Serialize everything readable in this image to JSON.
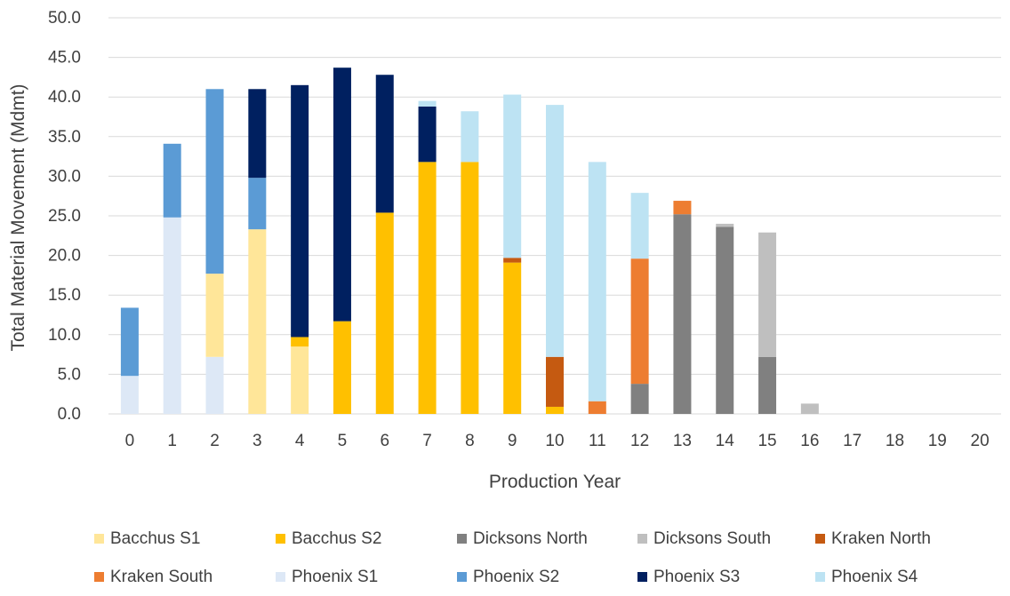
{
  "chart_data": {
    "type": "bar",
    "stacked": true,
    "title": "",
    "xlabel": "Production Year",
    "ylabel": "Total Material Movement (Mdmt)",
    "categories": [
      "0",
      "1",
      "2",
      "3",
      "4",
      "5",
      "6",
      "7",
      "8",
      "9",
      "10",
      "11",
      "12",
      "13",
      "14",
      "15",
      "16",
      "17",
      "18",
      "19",
      "20"
    ],
    "ylim": [
      0,
      50
    ],
    "yticks": [
      "0.0",
      "5.0",
      "10.0",
      "15.0",
      "20.0",
      "25.0",
      "30.0",
      "35.0",
      "40.0",
      "45.0",
      "50.0"
    ],
    "grid": "horizontal",
    "legend_position": "bottom",
    "series": [
      {
        "name": "Phoenix S1",
        "color": "#dde8f6",
        "values": [
          4.8,
          24.8,
          7.2,
          0,
          0,
          0,
          0,
          0,
          0,
          0,
          0,
          0,
          0,
          0,
          0,
          0,
          0,
          0,
          0,
          0,
          0
        ]
      },
      {
        "name": "Bacchus S1",
        "color": "#ffe699",
        "values": [
          0,
          0,
          10.5,
          23.3,
          8.5,
          0,
          0,
          0,
          0,
          0,
          0,
          0,
          0,
          0,
          0,
          0,
          0,
          0,
          0,
          0,
          0
        ]
      },
      {
        "name": "Bacchus S2",
        "color": "#ffc000",
        "values": [
          0,
          0,
          0,
          0,
          1.2,
          11.7,
          25.4,
          31.8,
          31.8,
          19.1,
          0.9,
          0,
          0,
          0,
          0,
          0,
          0,
          0,
          0,
          0,
          0
        ]
      },
      {
        "name": "Kraken North",
        "color": "#c55a11",
        "values": [
          0,
          0,
          0,
          0,
          0,
          0,
          0,
          0,
          0,
          0.6,
          6.3,
          0,
          0,
          0,
          0,
          0,
          0,
          0,
          0,
          0,
          0
        ]
      },
      {
        "name": "Dicksons North",
        "color": "#808080",
        "values": [
          0,
          0,
          0,
          0,
          0,
          0,
          0,
          0,
          0,
          0,
          0,
          0,
          3.8,
          25.2,
          23.6,
          7.2,
          0,
          0,
          0,
          0,
          0
        ]
      },
      {
        "name": "Kraken South",
        "color": "#ed7d31",
        "values": [
          0,
          0,
          0,
          0,
          0,
          0,
          0,
          0,
          0,
          0,
          0,
          1.6,
          15.8,
          1.7,
          0,
          0,
          0,
          0,
          0,
          0,
          0
        ]
      },
      {
        "name": "Dicksons South",
        "color": "#bfbfbf",
        "values": [
          0,
          0,
          0,
          0,
          0,
          0,
          0,
          0,
          0,
          0,
          0,
          0,
          0,
          0,
          0.4,
          15.7,
          1.3,
          0,
          0,
          0,
          0
        ]
      },
      {
        "name": "Phoenix S2",
        "color": "#5b9bd5",
        "values": [
          8.6,
          9.3,
          23.3,
          6.5,
          0,
          0,
          0,
          0,
          0,
          0,
          0,
          0,
          0,
          0,
          0,
          0,
          0,
          0,
          0,
          0,
          0
        ]
      },
      {
        "name": "Phoenix S3",
        "color": "#002060",
        "values": [
          0,
          0,
          0,
          11.2,
          31.8,
          32.0,
          17.4,
          7.0,
          0,
          0,
          0,
          0,
          0,
          0,
          0,
          0,
          0,
          0,
          0,
          0,
          0
        ]
      },
      {
        "name": "Phoenix S4",
        "color": "#bde3f3",
        "values": [
          0,
          0,
          0,
          0,
          0,
          0,
          0,
          0.7,
          6.4,
          20.6,
          31.8,
          30.2,
          8.3,
          0,
          0,
          0,
          0,
          0,
          0,
          0,
          0
        ]
      }
    ],
    "legend": [
      "Bacchus S1",
      "Bacchus S2",
      "Dicksons North",
      "Dicksons South",
      "Kraken North",
      "Kraken South",
      "Phoenix S1",
      "Phoenix S2",
      "Phoenix S3",
      "Phoenix S4"
    ]
  }
}
